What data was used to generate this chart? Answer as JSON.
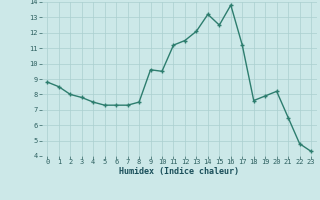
{
  "x": [
    0,
    1,
    2,
    3,
    4,
    5,
    6,
    7,
    8,
    9,
    10,
    11,
    12,
    13,
    14,
    15,
    16,
    17,
    18,
    19,
    20,
    21,
    22,
    23
  ],
  "y": [
    8.8,
    8.5,
    8.0,
    7.8,
    7.5,
    7.3,
    7.3,
    7.3,
    7.5,
    9.6,
    9.5,
    11.2,
    11.5,
    12.1,
    13.2,
    12.5,
    13.8,
    11.2,
    7.6,
    7.9,
    8.2,
    6.5,
    4.8,
    4.3
  ],
  "xlabel": "Humidex (Indice chaleur)",
  "ylim": [
    4,
    14
  ],
  "xlim": [
    -0.5,
    23.5
  ],
  "yticks": [
    4,
    5,
    6,
    7,
    8,
    9,
    10,
    11,
    12,
    13,
    14
  ],
  "xticks": [
    0,
    1,
    2,
    3,
    4,
    5,
    6,
    7,
    8,
    9,
    10,
    11,
    12,
    13,
    14,
    15,
    16,
    17,
    18,
    19,
    20,
    21,
    22,
    23
  ],
  "line_color": "#2d7d6e",
  "marker_color": "#2d7d6e",
  "bg_color": "#cce8e8",
  "grid_color": "#aacfcf",
  "tick_color": "#2d6060",
  "label_color": "#1a4f5a",
  "tick_fontsize": 5.0,
  "xlabel_fontsize": 6.0
}
